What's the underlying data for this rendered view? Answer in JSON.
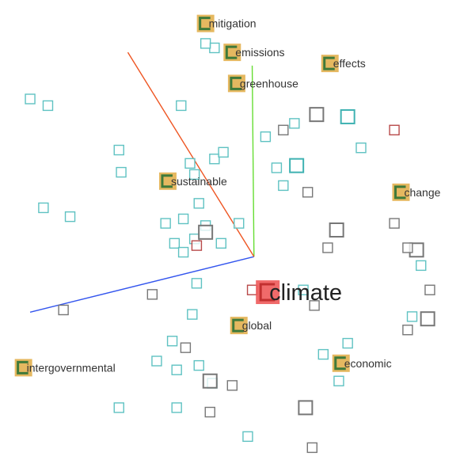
{
  "colors": {
    "teal": "#5fc2c2",
    "teal_dark": "#3fb2b2",
    "gray": "#777777",
    "red": "#b84a4a",
    "gold": "#e2b04f",
    "green": "#3f7a3a",
    "focus": "#ee5a5a",
    "axis_x": "#3355ee",
    "axis_y": "#66dd33",
    "axis_z": "#ee5522"
  },
  "chart_data": {
    "type": "scatter",
    "title": "",
    "xlabel": "",
    "ylabel": "",
    "grid": false,
    "legend": "none",
    "xlim": [
      -10,
      10
    ],
    "ylim": [
      -10,
      10
    ],
    "origin": [
      1.08,
      -1.2
    ],
    "axes": [
      {
        "id": "x",
        "color": "axis_x",
        "end": [
          -9.0,
          -3.7
        ]
      },
      {
        "id": "y",
        "color": "axis_y",
        "end": [
          1.0,
          7.4
        ]
      },
      {
        "id": "z",
        "color": "axis_z",
        "end": [
          -4.6,
          8.0
        ]
      }
    ],
    "focus": {
      "label": "climate",
      "x": 1.7,
      "y": -2.8
    },
    "labeled_points": [
      {
        "label": "mitigation",
        "x": -1.1,
        "y": 9.3
      },
      {
        "label": "emissions",
        "x": 0.1,
        "y": 8.0
      },
      {
        "label": "effects",
        "x": 4.5,
        "y": 7.5
      },
      {
        "label": "greenhouse",
        "x": 0.3,
        "y": 6.6
      },
      {
        "label": "sustainable",
        "x": -2.8,
        "y": 2.2
      },
      {
        "label": "change",
        "x": 7.7,
        "y": 1.7
      },
      {
        "label": "global",
        "x": 0.4,
        "y": -4.3
      },
      {
        "label": "economic",
        "x": 5.0,
        "y": -6.0
      },
      {
        "label": "intergovernmental",
        "x": -9.3,
        "y": -6.2
      }
    ],
    "unlabeled_points": [
      {
        "x": -0.7,
        "y": 8.2,
        "kind": "teal"
      },
      {
        "x": -1.1,
        "y": 8.4,
        "kind": "teal"
      },
      {
        "x": -9.0,
        "y": 5.9,
        "kind": "teal"
      },
      {
        "x": -8.2,
        "y": 5.6,
        "kind": "teal"
      },
      {
        "x": -2.2,
        "y": 5.6,
        "kind": "teal"
      },
      {
        "x": -5.0,
        "y": 3.6,
        "kind": "teal"
      },
      {
        "x": -4.9,
        "y": 2.6,
        "kind": "teal"
      },
      {
        "x": -1.6,
        "y": 2.5,
        "kind": "teal"
      },
      {
        "x": -0.7,
        "y": 3.2,
        "kind": "teal"
      },
      {
        "x": -0.3,
        "y": 3.5,
        "kind": "teal"
      },
      {
        "x": -1.8,
        "y": 3.0,
        "kind": "teal"
      },
      {
        "x": -1.4,
        "y": 1.2,
        "kind": "teal"
      },
      {
        "x": -2.1,
        "y": 0.5,
        "kind": "teal"
      },
      {
        "x": -1.6,
        "y": -0.4,
        "kind": "teal"
      },
      {
        "x": -2.5,
        "y": -0.6,
        "kind": "teal"
      },
      {
        "x": -2.9,
        "y": 0.3,
        "kind": "teal"
      },
      {
        "x": -1.1,
        "y": 0.2,
        "kind": "teal"
      },
      {
        "x": -0.4,
        "y": -0.6,
        "kind": "teal"
      },
      {
        "x": -2.1,
        "y": -1.0,
        "kind": "teal"
      },
      {
        "x": -1.5,
        "y": -2.4,
        "kind": "teal"
      },
      {
        "x": -8.4,
        "y": 1.0,
        "kind": "teal"
      },
      {
        "x": -7.2,
        "y": 0.6,
        "kind": "teal"
      },
      {
        "x": 1.6,
        "y": 4.2,
        "kind": "teal"
      },
      {
        "x": 2.9,
        "y": 4.8,
        "kind": "teal"
      },
      {
        "x": 5.3,
        "y": 5.1,
        "kind": "teal_dark"
      },
      {
        "x": 5.9,
        "y": 3.7,
        "kind": "teal"
      },
      {
        "x": 2.1,
        "y": 2.8,
        "kind": "teal"
      },
      {
        "x": 3.0,
        "y": 2.9,
        "kind": "teal_dark"
      },
      {
        "x": 2.4,
        "y": 2.0,
        "kind": "teal"
      },
      {
        "x": 0.4,
        "y": 0.3,
        "kind": "teal"
      },
      {
        "x": 3.3,
        "y": -2.7,
        "kind": "teal"
      },
      {
        "x": 8.6,
        "y": -1.6,
        "kind": "teal"
      },
      {
        "x": 8.2,
        "y": -3.9,
        "kind": "teal"
      },
      {
        "x": 4.2,
        "y": -5.6,
        "kind": "teal"
      },
      {
        "x": 5.3,
        "y": -5.1,
        "kind": "teal"
      },
      {
        "x": 4.9,
        "y": -6.8,
        "kind": "teal"
      },
      {
        "x": -2.6,
        "y": -5.0,
        "kind": "teal"
      },
      {
        "x": -2.4,
        "y": -6.3,
        "kind": "teal"
      },
      {
        "x": -1.4,
        "y": -6.1,
        "kind": "teal"
      },
      {
        "x": -0.8,
        "y": -6.9,
        "kind": "teal"
      },
      {
        "x": -3.3,
        "y": -5.9,
        "kind": "teal"
      },
      {
        "x": -5.0,
        "y": -8.0,
        "kind": "teal"
      },
      {
        "x": -2.4,
        "y": -8.0,
        "kind": "teal"
      },
      {
        "x": 0.8,
        "y": -9.3,
        "kind": "teal"
      },
      {
        "x": -1.7,
        "y": -3.8,
        "kind": "teal"
      },
      {
        "x": 3.9,
        "y": 5.2,
        "kind": "gray"
      },
      {
        "x": 2.4,
        "y": 4.5,
        "kind": "gray"
      },
      {
        "x": 3.5,
        "y": 1.7,
        "kind": "gray"
      },
      {
        "x": 4.8,
        "y": 0.0,
        "kind": "gray"
      },
      {
        "x": 4.4,
        "y": -0.8,
        "kind": "gray"
      },
      {
        "x": 7.4,
        "y": 0.3,
        "kind": "gray"
      },
      {
        "x": 8.4,
        "y": -0.9,
        "kind": "gray"
      },
      {
        "x": 8.0,
        "y": -0.8,
        "kind": "gray"
      },
      {
        "x": 9.0,
        "y": -2.7,
        "kind": "gray"
      },
      {
        "x": 8.9,
        "y": -4.0,
        "kind": "gray"
      },
      {
        "x": 8.0,
        "y": -4.5,
        "kind": "gray"
      },
      {
        "x": 3.8,
        "y": -3.4,
        "kind": "gray"
      },
      {
        "x": -1.1,
        "y": -0.1,
        "kind": "gray"
      },
      {
        "x": -3.5,
        "y": -2.9,
        "kind": "gray"
      },
      {
        "x": -2.0,
        "y": -5.3,
        "kind": "gray"
      },
      {
        "x": -0.9,
        "y": -6.8,
        "kind": "gray"
      },
      {
        "x": 0.1,
        "y": -7.0,
        "kind": "gray"
      },
      {
        "x": -0.9,
        "y": -8.2,
        "kind": "gray"
      },
      {
        "x": 3.4,
        "y": -8.0,
        "kind": "gray"
      },
      {
        "x": 3.7,
        "y": -9.8,
        "kind": "gray"
      },
      {
        "x": -7.5,
        "y": -3.6,
        "kind": "gray"
      },
      {
        "x": 7.4,
        "y": 4.5,
        "kind": "red"
      },
      {
        "x": -1.5,
        "y": -0.7,
        "kind": "red"
      },
      {
        "x": 1.0,
        "y": -2.7,
        "kind": "red"
      }
    ]
  }
}
